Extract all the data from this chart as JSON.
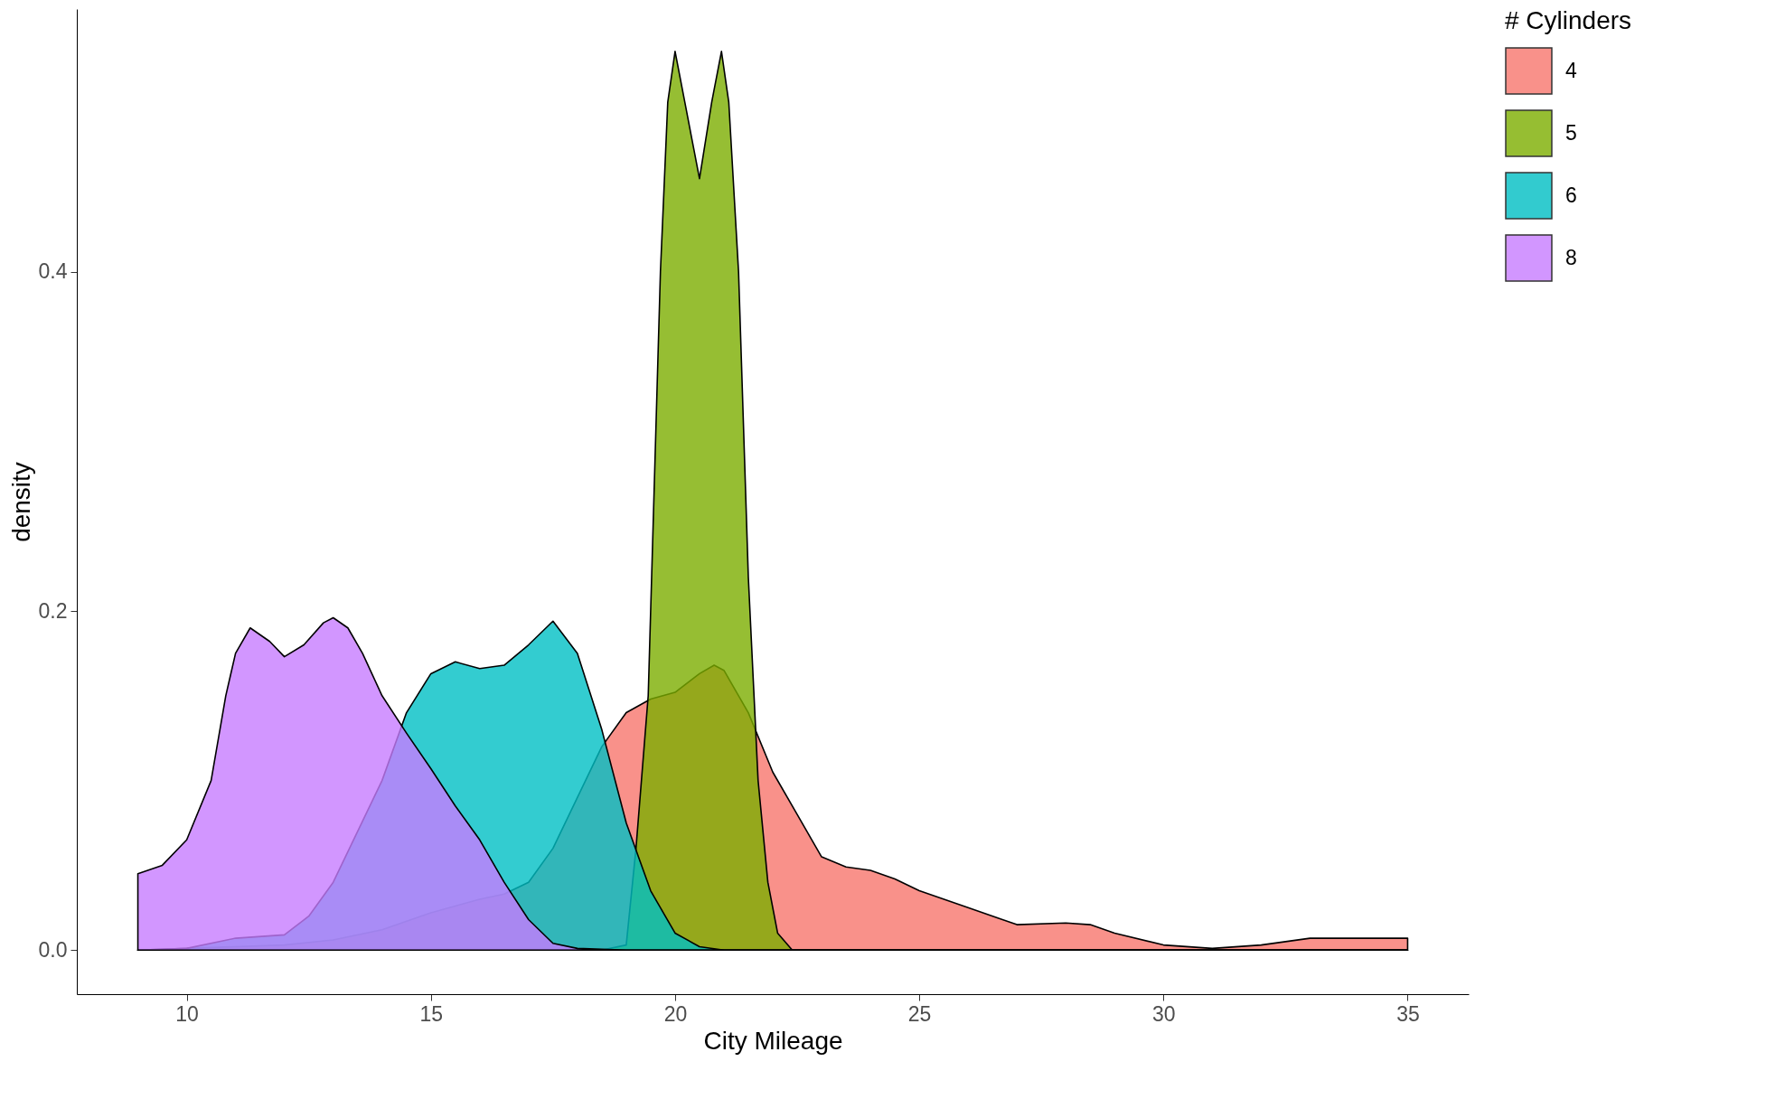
{
  "chart_data": {
    "type": "area",
    "xlabel": "City Mileage",
    "ylabel": "density",
    "legend_title": "# Cylinders",
    "legend": "right",
    "grid": false,
    "xlim": [
      7.75,
      36.25
    ],
    "ylim": [
      -0.026,
      0.555
    ],
    "xticks": [
      10,
      15,
      20,
      25,
      30,
      35
    ],
    "yticks": [
      {
        "value": 0,
        "label": "0.0"
      },
      {
        "value": 0.2,
        "label": "0.2"
      },
      {
        "value": 0.4,
        "label": "0.4"
      }
    ],
    "series": [
      {
        "name": "4",
        "color": "#f8766d",
        "x": [
          9,
          10,
          11,
          12,
          13,
          14,
          15,
          16,
          16.5,
          17,
          17.5,
          18,
          18.5,
          19,
          19.5,
          20,
          20.5,
          20.8,
          21,
          21.5,
          22,
          22.5,
          23,
          23.5,
          24,
          24.5,
          25,
          26,
          27,
          28,
          28.5,
          29,
          30,
          31,
          32,
          33,
          34,
          35
        ],
        "values": [
          0,
          0.001,
          0.002,
          0.003,
          0.006,
          0.012,
          0.022,
          0.03,
          0.033,
          0.04,
          0.06,
          0.09,
          0.12,
          0.14,
          0.148,
          0.152,
          0.163,
          0.168,
          0.165,
          0.14,
          0.105,
          0.08,
          0.055,
          0.049,
          0.047,
          0.042,
          0.035,
          0.025,
          0.015,
          0.016,
          0.015,
          0.01,
          0.003,
          0.001,
          0.003,
          0.007,
          0.007,
          0.007
        ]
      },
      {
        "name": "5",
        "color": "#7cae00",
        "x": [
          9,
          18.5,
          19,
          19.2,
          19.45,
          19.7,
          19.85,
          20,
          20.2,
          20.5,
          20.75,
          20.95,
          21.1,
          21.3,
          21.5,
          21.7,
          21.9,
          22.1,
          22.4,
          35
        ],
        "values": [
          0,
          0,
          0.003,
          0.06,
          0.15,
          0.4,
          0.5,
          0.53,
          0.5,
          0.455,
          0.5,
          0.53,
          0.5,
          0.4,
          0.22,
          0.1,
          0.04,
          0.01,
          0,
          0
        ]
      },
      {
        "name": "6",
        "color": "#00bfc4",
        "x": [
          9,
          10,
          11,
          12,
          12.5,
          13,
          13.5,
          14,
          14.5,
          15,
          15.5,
          16,
          16.5,
          17,
          17.5,
          18,
          18.5,
          19,
          19.5,
          20,
          20.5,
          21,
          35
        ],
        "values": [
          0,
          0.001,
          0.007,
          0.009,
          0.02,
          0.04,
          0.07,
          0.1,
          0.14,
          0.163,
          0.17,
          0.166,
          0.168,
          0.18,
          0.194,
          0.175,
          0.13,
          0.075,
          0.035,
          0.01,
          0.002,
          0,
          0
        ]
      },
      {
        "name": "8",
        "color": "#c77cff",
        "x": [
          9,
          9.5,
          10,
          10.5,
          10.8,
          11,
          11.3,
          11.7,
          12,
          12.4,
          12.8,
          13,
          13.3,
          13.6,
          14,
          14.5,
          15,
          15.5,
          16,
          16.5,
          17,
          17.5,
          18,
          19,
          35
        ],
        "values": [
          0.045,
          0.05,
          0.065,
          0.1,
          0.15,
          0.175,
          0.19,
          0.182,
          0.173,
          0.18,
          0.193,
          0.196,
          0.19,
          0.175,
          0.15,
          0.128,
          0.107,
          0.085,
          0.065,
          0.04,
          0.018,
          0.004,
          0.001,
          0,
          0
        ]
      }
    ]
  }
}
